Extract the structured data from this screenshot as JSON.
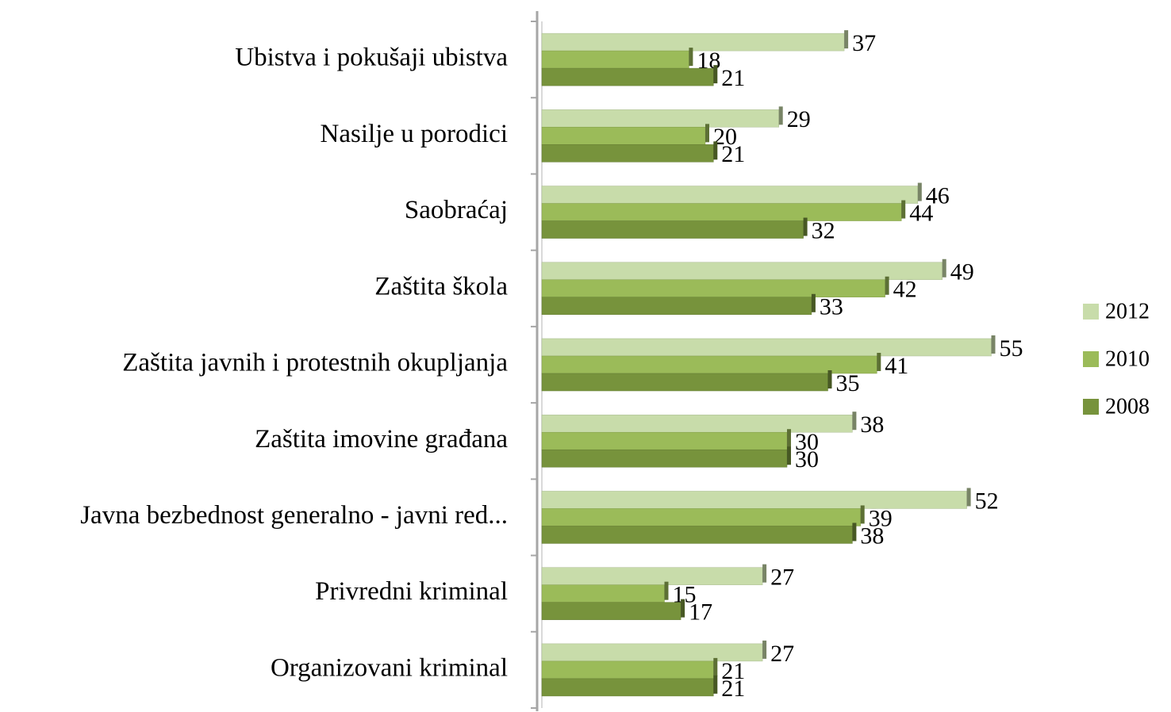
{
  "chart_data": {
    "type": "bar",
    "orientation": "horizontal",
    "categories": [
      "Ubistva i pokušaji ubistva",
      "Nasilje u porodici",
      "Saobraćaj",
      "Zaštita škola",
      "Zaštita javnih i protestnih okupljanja",
      "Zaštita imovine građana",
      "Javna bezbednost generalno -  javni red...",
      "Privredni kriminal",
      "Organizovani kriminal"
    ],
    "series": [
      {
        "name": "2012",
        "color": "#c8dcaa",
        "values": [
          37,
          29,
          46,
          49,
          55,
          38,
          52,
          27,
          27
        ]
      },
      {
        "name": "2010",
        "color": "#9bbb59",
        "values": [
          18,
          20,
          44,
          42,
          41,
          30,
          39,
          15,
          21
        ]
      },
      {
        "name": "2008",
        "color": "#77933c",
        "values": [
          21,
          21,
          32,
          33,
          35,
          30,
          38,
          17,
          21
        ]
      }
    ],
    "xlim": [
      0,
      60
    ],
    "legend": "right"
  }
}
